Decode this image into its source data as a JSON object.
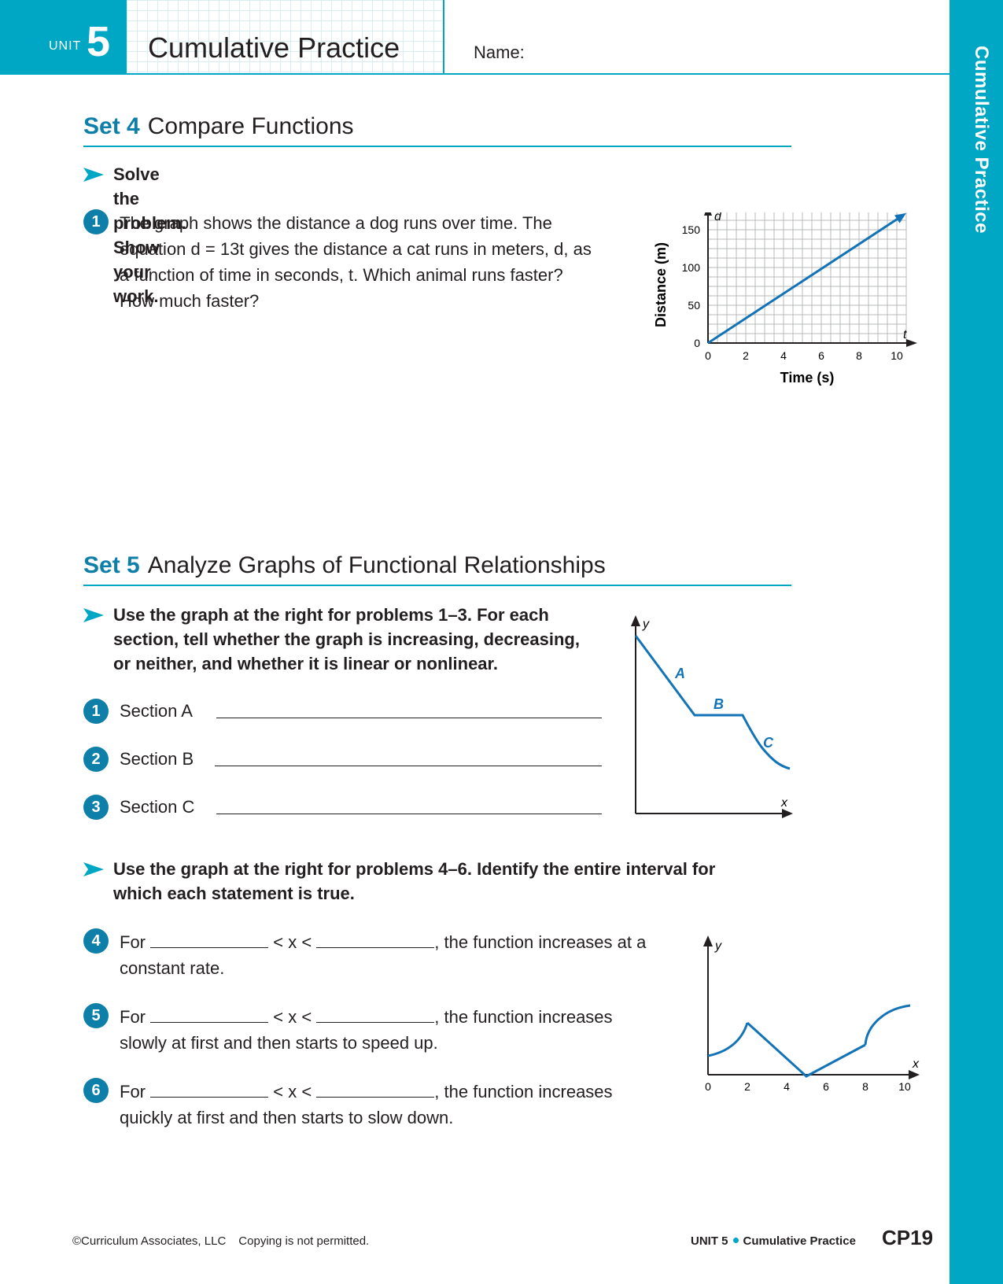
{
  "header": {
    "unit_word": "UNIT",
    "unit_number": "5",
    "title": "Cumulative Practice",
    "name_label": "Name:",
    "side_tab": "Cumulative Practice"
  },
  "colors": {
    "accent": "#00a7c4",
    "dark_accent": "#0e7fa8",
    "line": "#1273b6"
  },
  "set4": {
    "set_label": "Set 4",
    "title": "Compare Functions",
    "instruction": "Solve the problem. Show your work.",
    "problem": {
      "number": "1",
      "lines": [
        "The graph shows the distance a dog runs over time. The",
        "equation d = 13t gives the distance a cat runs in meters, d, as",
        "a function of time in seconds, t. Which animal runs faster?",
        "How much faster?"
      ]
    }
  },
  "set5": {
    "set_label": "Set 5",
    "title": "Analyze Graphs of Functional Relationships",
    "instruction_a": [
      "Use the graph at the right for problems 1–3. For each",
      "section, tell whether the graph is increasing, decreasing,",
      "or neither, and whether it is linear or nonlinear."
    ],
    "sections": [
      {
        "number": "1",
        "label": "Section A"
      },
      {
        "number": "2",
        "label": "Section B"
      },
      {
        "number": "3",
        "label": "Section C"
      }
    ],
    "instruction_b": [
      "Use the graph at the right for problems 4–6. Identify the entire interval for",
      "which each statement is true."
    ],
    "intervals": [
      {
        "number": "4",
        "prefix": "For",
        "middle": "< x <",
        "suffix": ", the function increases at a",
        "line2": "constant rate."
      },
      {
        "number": "5",
        "prefix": "For",
        "middle": "< x <",
        "suffix": ", the function increases",
        "line2": "slowly at first and then starts to speed up."
      },
      {
        "number": "6",
        "prefix": "For",
        "middle": "< x <",
        "suffix": ", the function increases",
        "line2": "quickly at first and then starts to slow down."
      }
    ]
  },
  "chart_data": [
    {
      "type": "line",
      "xlabel": "Time (s)",
      "ylabel": "Distance (m)",
      "x_var": "t",
      "y_var": "d",
      "x_ticks": [
        0,
        2,
        4,
        6,
        8,
        10
      ],
      "y_ticks": [
        0,
        50,
        100,
        150
      ],
      "xlim": [
        0,
        10.5
      ],
      "ylim": [
        0,
        175
      ],
      "grid": true,
      "series": [
        {
          "x": [
            0,
            10.5
          ],
          "y": [
            0,
            172
          ]
        }
      ]
    },
    {
      "type": "line",
      "x_var": "x",
      "y_var": "y",
      "section_labels": [
        "A",
        "B",
        "C"
      ],
      "grid": false
    },
    {
      "type": "line",
      "x_var": "x",
      "y_var": "y",
      "x_ticks": [
        0,
        2,
        4,
        6,
        8,
        10
      ],
      "grid": false
    }
  ],
  "footer": {
    "copyright": "©Curriculum Associates, LLC",
    "notice": "Copying is not permitted.",
    "unit": "UNIT 5",
    "section": "Cumulative Practice",
    "page": "CP19"
  }
}
